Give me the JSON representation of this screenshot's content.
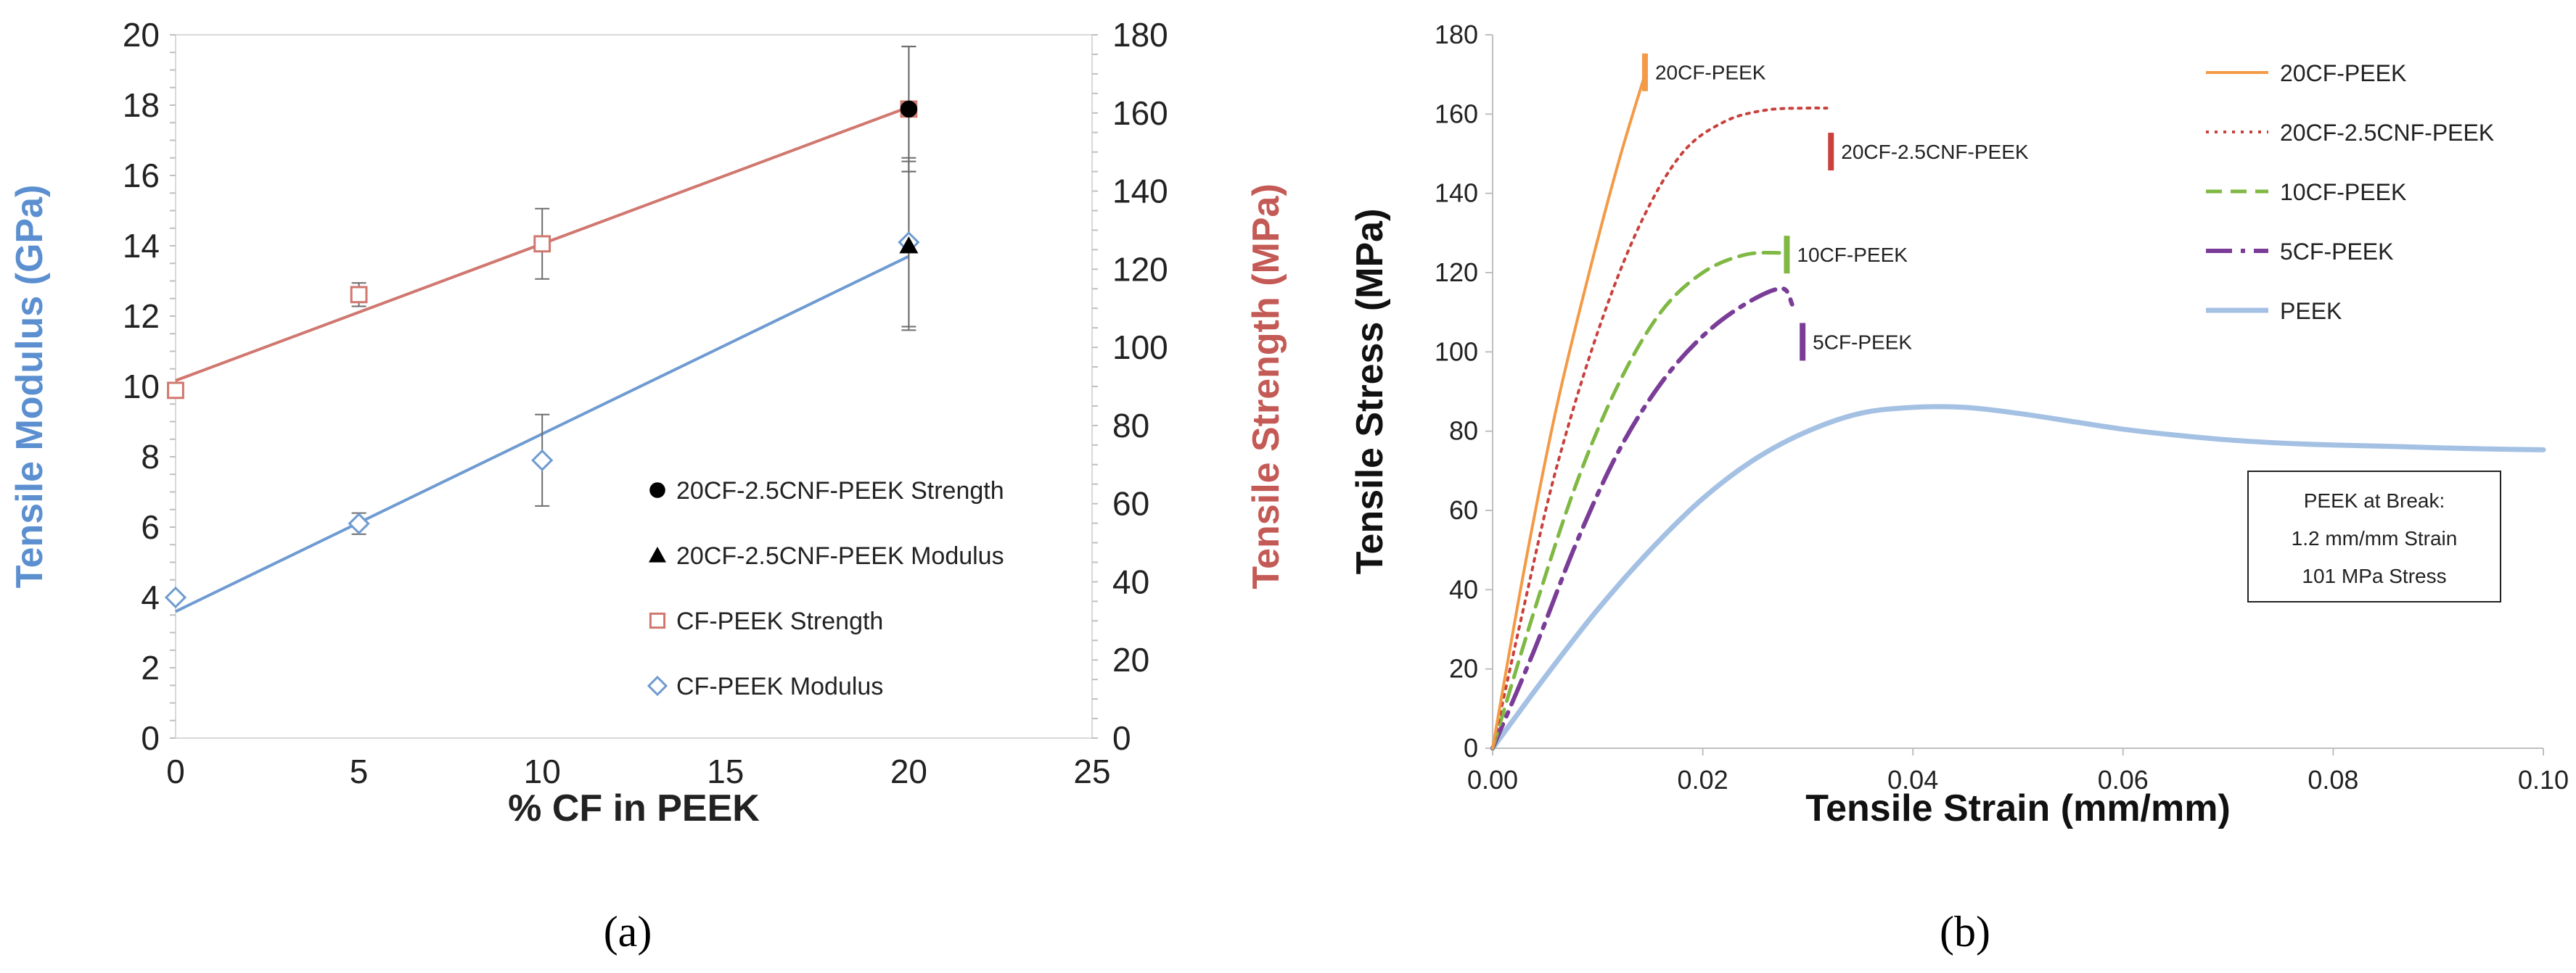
{
  "panel_labels": {
    "a": "(a)",
    "b": "(b)"
  },
  "chart_data": [
    {
      "type": "scatter",
      "panel": "(a)",
      "xlabel": "% CF in PEEK",
      "ylabel_left": "Tensile Modulus (GPa)",
      "ylabel_right": "Tensile Strength (MPa)",
      "xlim": [
        0,
        25
      ],
      "ylim_left": [
        0,
        20
      ],
      "ylim_right": [
        0,
        180
      ],
      "xticks": [
        0,
        5,
        10,
        15,
        20,
        25
      ],
      "yticks_left": [
        0,
        2,
        4,
        6,
        8,
        10,
        12,
        14,
        16,
        18,
        20
      ],
      "yticks_right": [
        0,
        20,
        40,
        60,
        80,
        100,
        120,
        140,
        160,
        180
      ],
      "colors": {
        "modulus": "#6e9bd1",
        "strength": "#d0776f",
        "modulus_axis": "#5b8fd0",
        "strength_axis": "#c45a55",
        "black": "#000000"
      },
      "series": [
        {
          "name": "CF-PEEK Modulus",
          "axis": "left",
          "marker": "diamond-open",
          "color": "#6e9bd1",
          "x": [
            0,
            5,
            10,
            20
          ],
          "y": [
            4.0,
            6.1,
            7.9,
            14.1
          ],
          "err": [
            0,
            0.3,
            1.3,
            2.4
          ],
          "trendline": {
            "x": [
              0,
              20
            ],
            "y": [
              3.6,
              13.7
            ]
          }
        },
        {
          "name": "CF-PEEK Strength",
          "axis": "right",
          "marker": "square-open",
          "color": "#d0776f",
          "x": [
            0,
            5,
            10,
            20
          ],
          "y": [
            89,
            113.5,
            126.5,
            161
          ],
          "err": [
            0,
            3,
            9,
            16
          ],
          "trendline": {
            "x": [
              0,
              20
            ],
            "y": [
              91.5,
              161.5
            ]
          }
        },
        {
          "name": "20CF-2.5CNF-PEEK Strength",
          "axis": "right",
          "marker": "circle",
          "color": "#000000",
          "x": [
            20
          ],
          "y": [
            161
          ],
          "err": [
            16
          ]
        },
        {
          "name": "20CF-2.5CNF-PEEK Modulus",
          "axis": "left",
          "marker": "triangle",
          "color": "#000000",
          "x": [
            20
          ],
          "y": [
            14.0
          ],
          "err": [
            2.4
          ]
        }
      ],
      "legend": [
        "20CF-2.5CNF-PEEK Strength",
        "20CF-2.5CNF-PEEK Modulus",
        "CF-PEEK Strength",
        "CF-PEEK Modulus"
      ]
    },
    {
      "type": "line",
      "panel": "(b)",
      "xlabel": "Tensile Strain (mm/mm)",
      "ylabel": "Tensile Stress (MPa)",
      "xlim": [
        0,
        0.1
      ],
      "ylim": [
        0,
        180
      ],
      "xticks": [
        "0.00",
        "0.02",
        "0.04",
        "0.06",
        "0.08",
        "0.10"
      ],
      "yticks": [
        0,
        20,
        40,
        60,
        80,
        100,
        120,
        140,
        160,
        180
      ],
      "series": [
        {
          "name": "20CF-PEEK",
          "color": "#f39a46",
          "style": "solid",
          "x": [
            0,
            0.003,
            0.006,
            0.009,
            0.012,
            0.0145
          ],
          "y": [
            0,
            45,
            85,
            118,
            148,
            170
          ]
        },
        {
          "name": "20CF-2.5CNF-PEEK",
          "color": "#c9413c",
          "style": "dotted",
          "x": [
            0,
            0.003,
            0.006,
            0.01,
            0.014,
            0.018,
            0.022,
            0.026,
            0.03,
            0.0318
          ],
          "y": [
            0,
            36,
            70,
            105,
            132,
            150,
            158,
            161,
            161.5,
            161.5
          ]
        },
        {
          "name": "10CF-PEEK",
          "color": "#7fb843",
          "style": "dashed",
          "x": [
            0,
            0.004,
            0.008,
            0.012,
            0.016,
            0.02,
            0.024,
            0.0275
          ],
          "y": [
            0,
            35,
            67,
            92,
            110,
            120,
            124.5,
            125
          ]
        },
        {
          "name": "5CF-PEEK",
          "color": "#7a3d97",
          "style": "dashdot",
          "x": [
            0,
            0.004,
            0.008,
            0.012,
            0.016,
            0.02,
            0.024,
            0.0275,
            0.0285
          ],
          "y": [
            0,
            25,
            52,
            75,
            92,
            104,
            112,
            116,
            112
          ]
        },
        {
          "name": "PEEK",
          "color": "#a4c1e4",
          "style": "solid-thick",
          "x": [
            0,
            0.005,
            0.01,
            0.015,
            0.02,
            0.025,
            0.03,
            0.035,
            0.04,
            0.045,
            0.05,
            0.055,
            0.06,
            0.065,
            0.07,
            0.075,
            0.08,
            0.085,
            0.09,
            0.095,
            0.1
          ],
          "y": [
            0,
            18,
            35,
            50,
            63,
            73,
            80,
            84.5,
            86,
            86,
            84.5,
            82.5,
            80.5,
            79,
            77.8,
            77,
            76.5,
            76.2,
            75.8,
            75.5,
            75.3
          ]
        }
      ],
      "annotations": [
        {
          "text": "20CF-PEEK",
          "x": 0.0145,
          "y": 172,
          "marker_color": "#f39a46"
        },
        {
          "text": "20CF-2.5CNF-PEEK",
          "x": 0.0322,
          "y": 152,
          "marker_color": "#c9413c"
        },
        {
          "text": "10CF-PEEK",
          "x": 0.028,
          "y": 126,
          "marker_color": "#7fb843"
        },
        {
          "text": "5CF-PEEK",
          "x": 0.0295,
          "y": 104,
          "marker_color": "#7a3d97"
        }
      ],
      "note": {
        "lines": [
          "PEEK at Break:",
          "1.2 mm/mm Strain",
          "101 MPa Stress"
        ]
      },
      "legend": [
        "20CF-PEEK",
        "20CF-2.5CNF-PEEK",
        "10CF-PEEK",
        "5CF-PEEK",
        "PEEK"
      ]
    }
  ]
}
